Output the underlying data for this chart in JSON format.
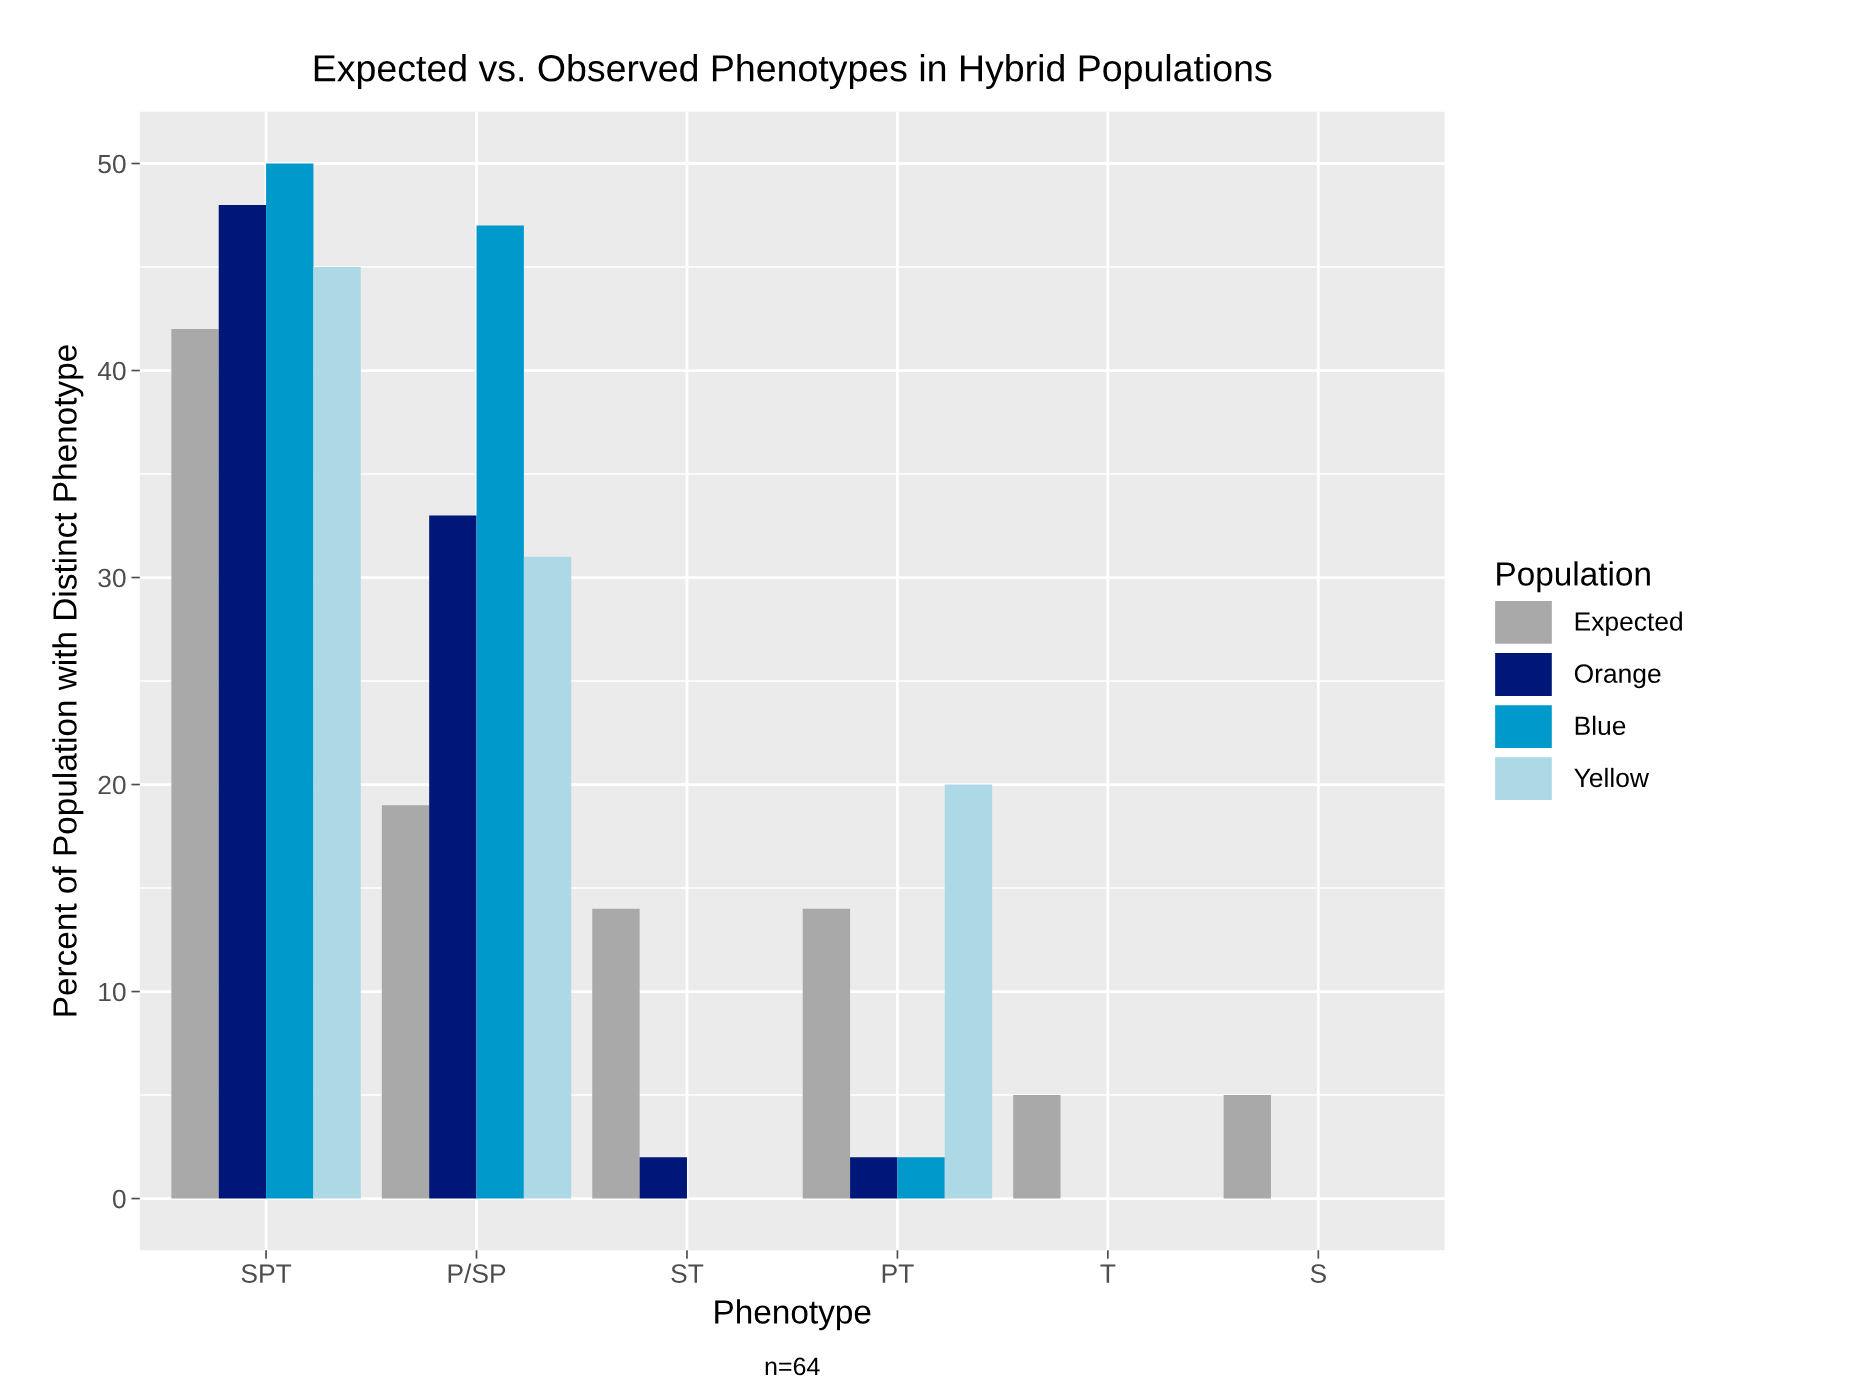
{
  "chart_data": {
    "type": "bar",
    "title": "Expected vs. Observed Phenotypes in Hybrid Populations",
    "xlabel": "Phenotype",
    "ylabel": "Percent of Population with Distinct Phenotype",
    "legend_title": "Population",
    "annotations": [
      "n=64"
    ],
    "categories": [
      "SPT",
      "P/SP",
      "ST",
      "PT",
      "T",
      "S"
    ],
    "series": [
      {
        "name": "Expected",
        "color": "#a9a9a9",
        "values": [
          42,
          19,
          14,
          14,
          5,
          5
        ]
      },
      {
        "name": "Orange",
        "color": "#00177a",
        "values": [
          48,
          33,
          2,
          2,
          0,
          0
        ]
      },
      {
        "name": "Blue",
        "color": "#0099cc",
        "values": [
          50,
          47,
          0,
          2,
          0,
          0
        ]
      },
      {
        "name": "Yellow",
        "color": "#add8e6",
        "values": [
          45,
          31,
          0,
          20,
          0,
          0
        ]
      }
    ],
    "ylim": [
      -2.5,
      52.5
    ],
    "yticks": [
      0,
      10,
      20,
      30,
      40,
      50
    ],
    "grid": true,
    "legend": "right"
  }
}
